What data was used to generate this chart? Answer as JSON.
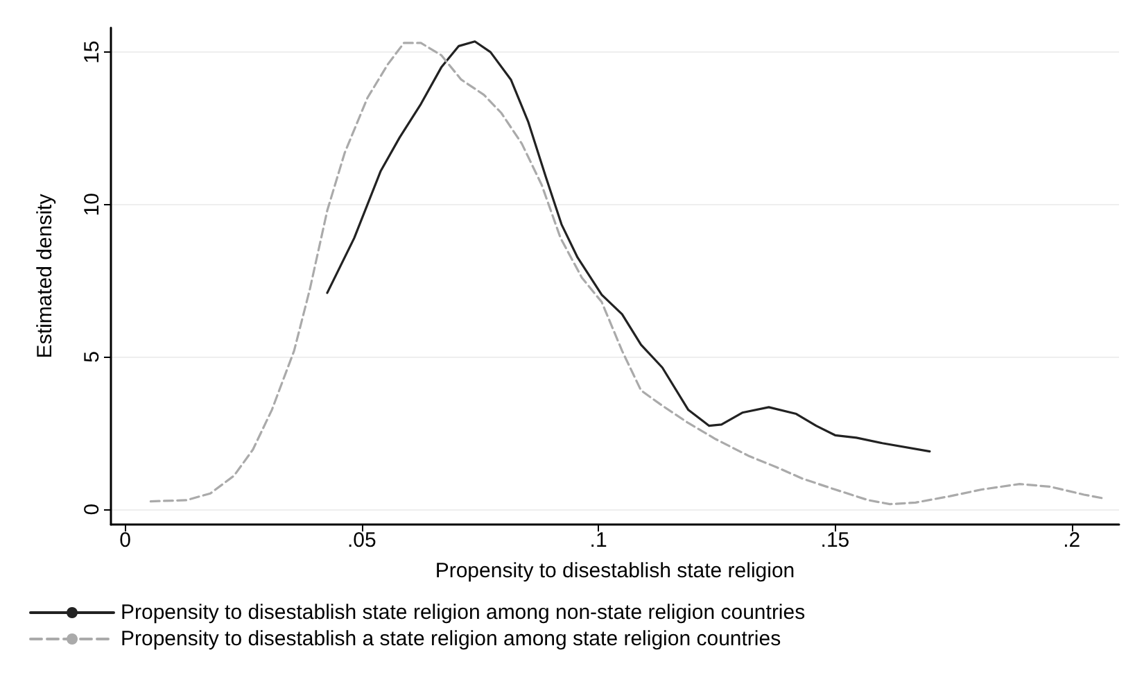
{
  "chart_data": {
    "type": "line",
    "xlabel": "Propensity to disestablish state religion",
    "ylabel": "Estimated density",
    "xlim": [
      -0.003,
      0.21
    ],
    "xticks": [
      0,
      {
        "value": 0.05,
        "label": ".05"
      },
      {
        "value": 0.1,
        "label": ".1"
      },
      {
        "value": 0.15,
        "label": ".15"
      },
      {
        "value": 0.2,
        "label": ".2"
      }
    ],
    "ylim": [
      -0.5,
      15.8
    ],
    "yticks": [
      0,
      5,
      10,
      15
    ],
    "grid": "y",
    "legend": "bottom",
    "marker": "none",
    "series": [
      {
        "name": "Propensity to disestablish state religion among non-state religion countries",
        "color": "#222222",
        "line_style": "solid",
        "x": [
          0.0427,
          0.0484,
          0.054,
          0.058,
          0.0625,
          0.0668,
          0.0705,
          0.0739,
          0.0772,
          0.0815,
          0.0852,
          0.0889,
          0.0922,
          0.0956,
          0.1007,
          0.105,
          0.109,
          0.1135,
          0.119,
          0.1234,
          0.126,
          0.1304,
          0.136,
          0.1418,
          0.146,
          0.15,
          0.1545,
          0.16,
          0.17
        ],
        "values": [
          7.1,
          8.9,
          11.1,
          12.2,
          13.3,
          14.5,
          15.2,
          15.35,
          15.0,
          14.1,
          12.7,
          10.9,
          9.35,
          8.26,
          7.04,
          6.4,
          5.4,
          4.65,
          3.26,
          2.74,
          2.78,
          3.17,
          3.35,
          3.13,
          2.74,
          2.43,
          2.35,
          2.17,
          1.9
        ]
      },
      {
        "name": "Propensity to disestablish a state religion among state religion countries",
        "color": "#aaaaaa",
        "line_style": "dashed",
        "x": [
          0.0054,
          0.013,
          0.018,
          0.023,
          0.027,
          0.031,
          0.0357,
          0.039,
          0.0427,
          0.0464,
          0.0512,
          0.0555,
          0.0589,
          0.0625,
          0.0668,
          0.071,
          0.0758,
          0.0795,
          0.0838,
          0.088,
          0.092,
          0.0965,
          0.1007,
          0.105,
          0.109,
          0.1135,
          0.119,
          0.1248,
          0.1319,
          0.1375,
          0.1432,
          0.15,
          0.157,
          0.1616,
          0.167,
          0.1743,
          0.181,
          0.189,
          0.1955,
          0.2026,
          0.207
        ],
        "values": [
          0.26,
          0.3,
          0.52,
          1.1,
          1.96,
          3.26,
          5.2,
          7.2,
          9.8,
          11.7,
          13.5,
          14.6,
          15.3,
          15.3,
          14.9,
          14.1,
          13.6,
          13.0,
          12.0,
          10.65,
          8.9,
          7.6,
          6.8,
          5.2,
          3.9,
          3.4,
          2.83,
          2.3,
          1.74,
          1.39,
          1.0,
          0.65,
          0.3,
          0.17,
          0.22,
          0.43,
          0.65,
          0.83,
          0.74,
          0.48,
          0.35
        ]
      }
    ]
  }
}
